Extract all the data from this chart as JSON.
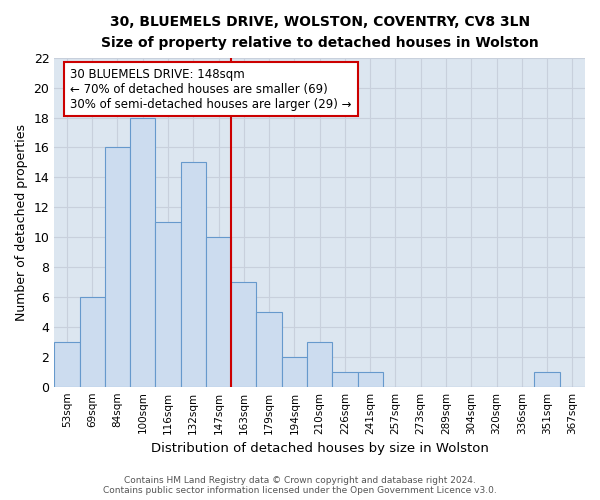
{
  "title1": "30, BLUEMELS DRIVE, WOLSTON, COVENTRY, CV8 3LN",
  "title2": "Size of property relative to detached houses in Wolston",
  "xlabel": "Distribution of detached houses by size in Wolston",
  "ylabel": "Number of detached properties",
  "bar_labels": [
    "53sqm",
    "69sqm",
    "84sqm",
    "100sqm",
    "116sqm",
    "132sqm",
    "147sqm",
    "163sqm",
    "179sqm",
    "194sqm",
    "210sqm",
    "226sqm",
    "241sqm",
    "257sqm",
    "273sqm",
    "289sqm",
    "304sqm",
    "320sqm",
    "336sqm",
    "351sqm",
    "367sqm"
  ],
  "bar_values": [
    3,
    6,
    16,
    18,
    11,
    15,
    10,
    7,
    5,
    2,
    3,
    1,
    1,
    0,
    0,
    0,
    0,
    0,
    0,
    1,
    0
  ],
  "bar_fill_color": "#ccdcef",
  "bar_edge_color": "#6699cc",
  "highlight_bar_index": 6,
  "highlight_color": "#cc0000",
  "annotation_text": "30 BLUEMELS DRIVE: 148sqm\n← 70% of detached houses are smaller (69)\n30% of semi-detached houses are larger (29) →",
  "annotation_box_color": "#ffffff",
  "annotation_box_edge": "#cc0000",
  "ylim": [
    0,
    22
  ],
  "yticks": [
    0,
    2,
    4,
    6,
    8,
    10,
    12,
    14,
    16,
    18,
    20,
    22
  ],
  "grid_color": "#c8d0dc",
  "bg_color": "#dce6f0",
  "fig_bg_color": "#ffffff",
  "footer1": "Contains HM Land Registry data © Crown copyright and database right 2024.",
  "footer2": "Contains public sector information licensed under the Open Government Licence v3.0."
}
